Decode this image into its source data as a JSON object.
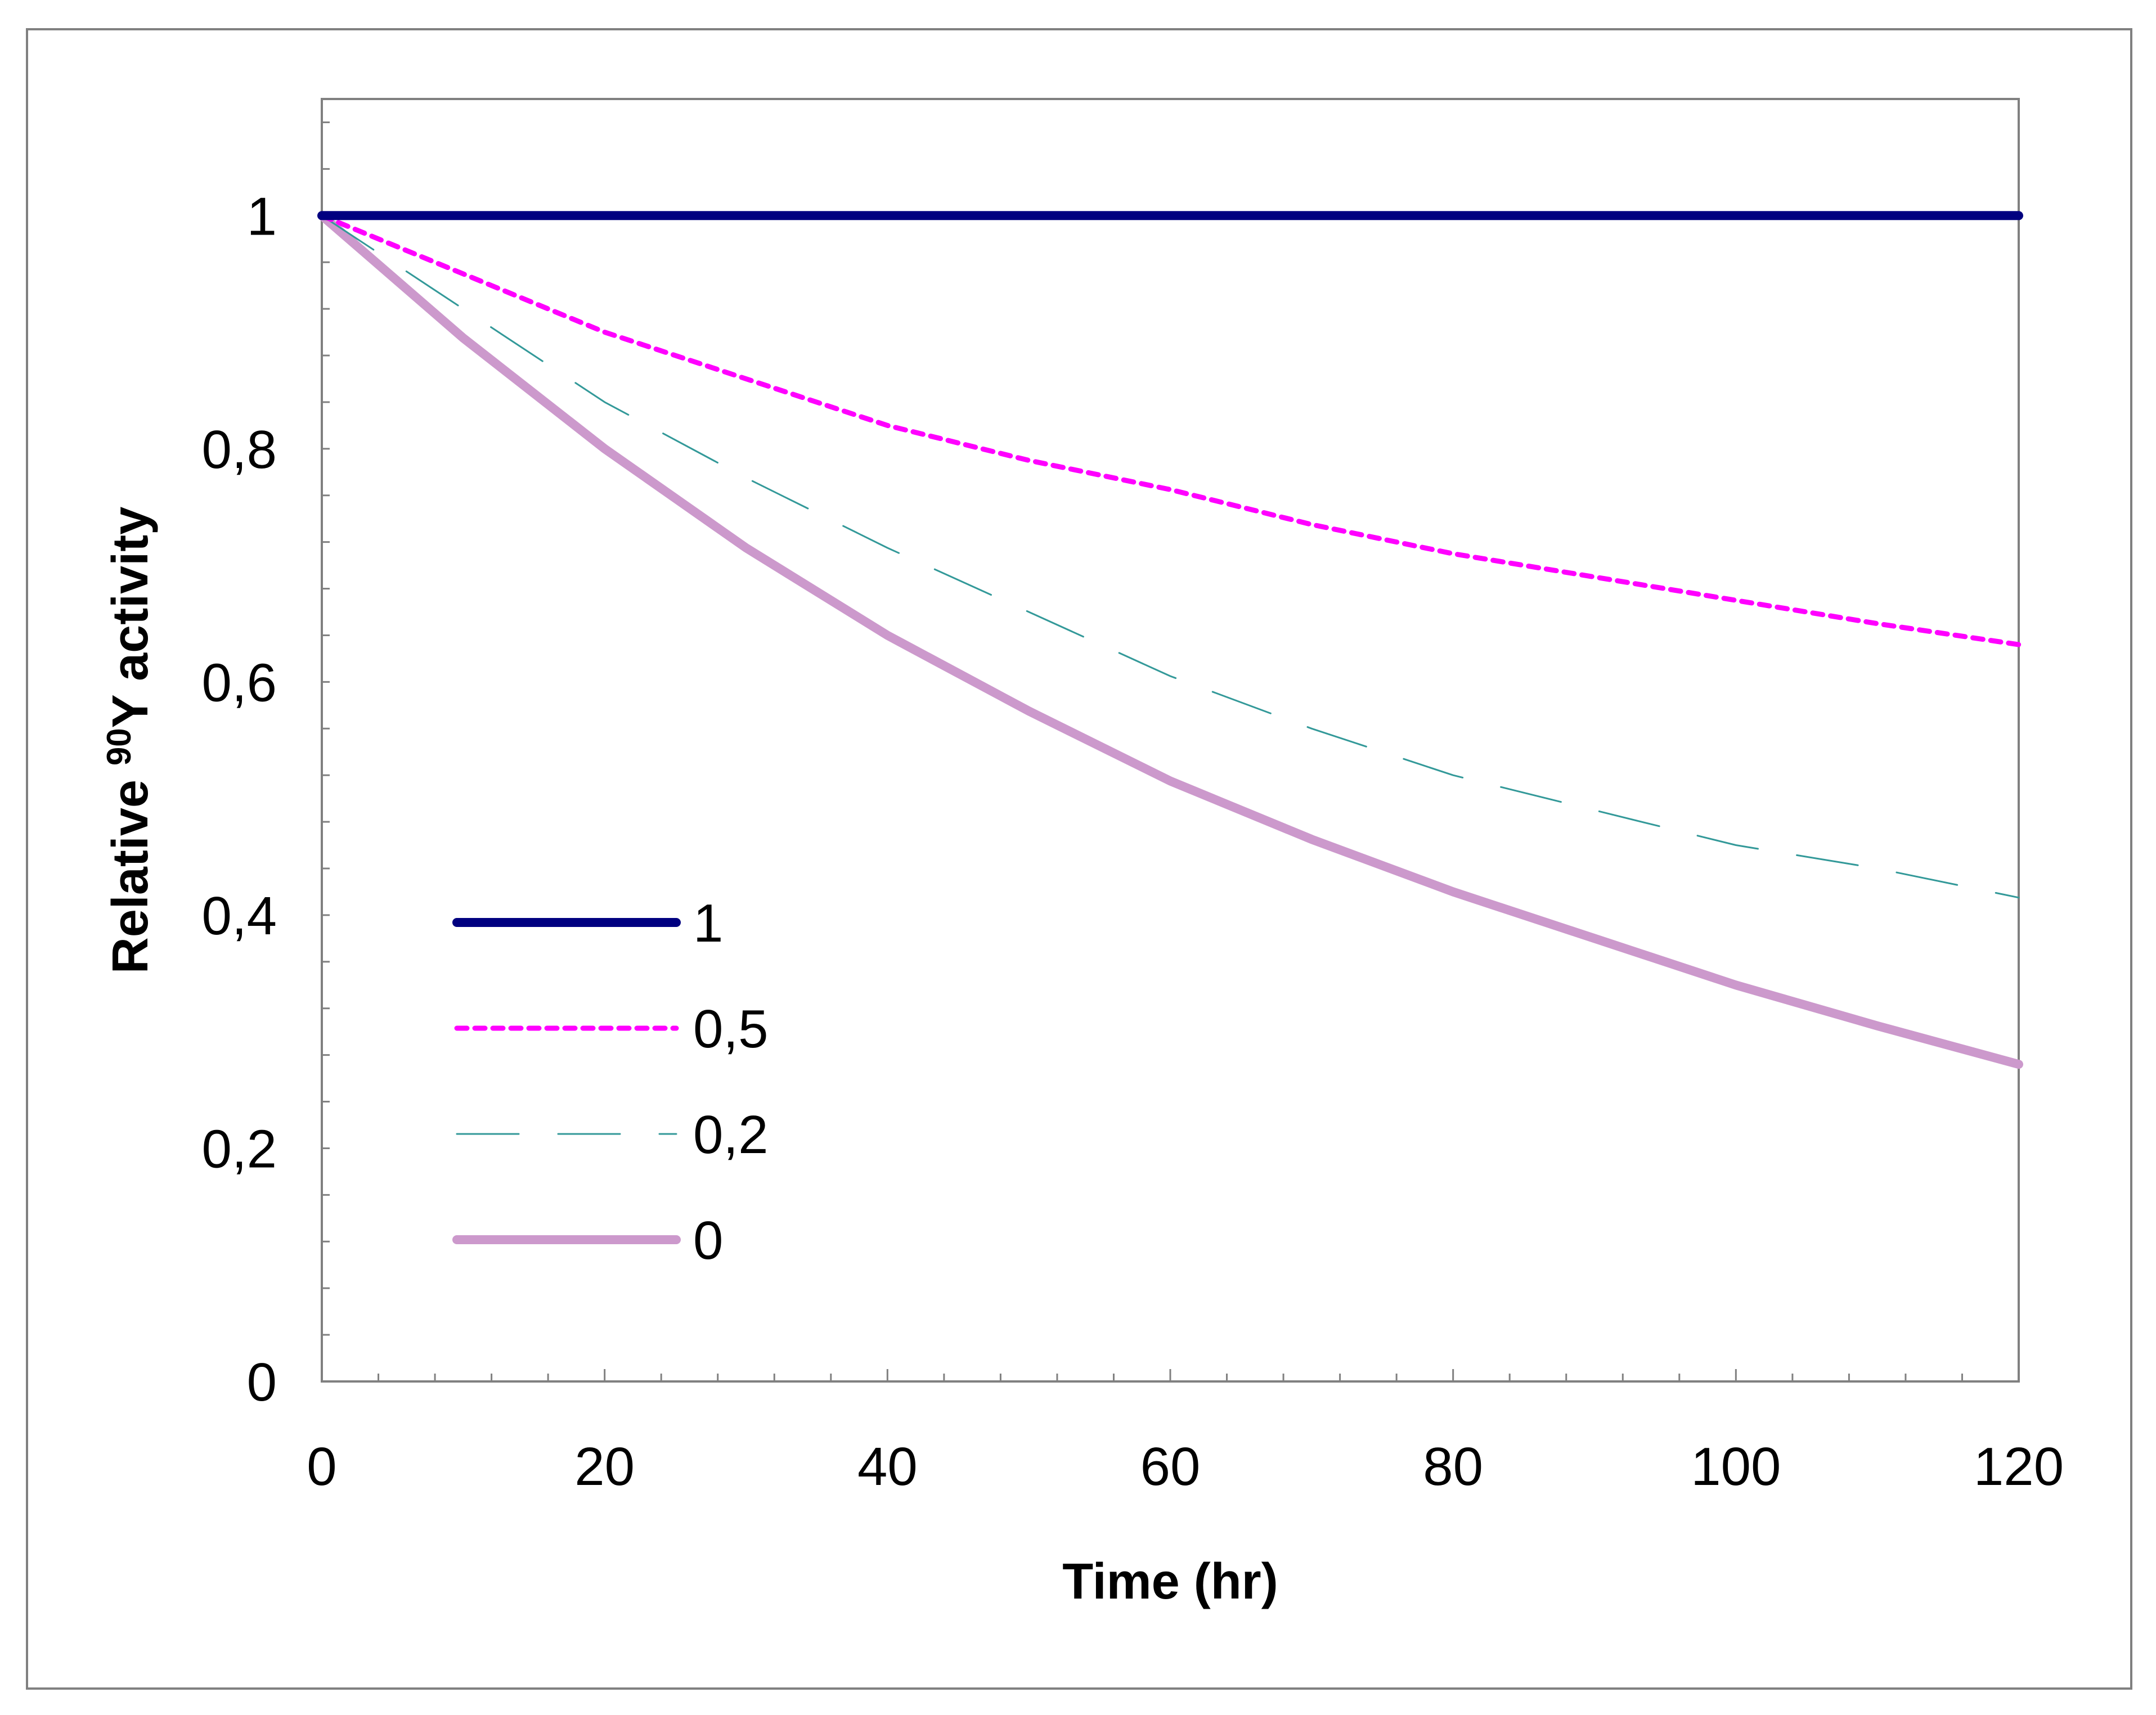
{
  "chart_data": {
    "type": "line",
    "title": "",
    "xlabel": "Time (hr)",
    "ylabel_prefix": "Relative ",
    "ylabel_superscript": "90",
    "ylabel_suffix": "Y activity",
    "xlim": [
      0,
      120
    ],
    "ylim": [
      0,
      1.1
    ],
    "x_ticks": [
      0,
      20,
      40,
      60,
      80,
      100,
      120
    ],
    "x_tick_labels": [
      "0",
      "20",
      "40",
      "60",
      "80",
      "100",
      "120"
    ],
    "x_minor_step": 4,
    "y_ticks": [
      0,
      0.2,
      0.4,
      0.6,
      0.8,
      1.0
    ],
    "y_tick_labels": [
      "0",
      "0,2",
      "0,4",
      "0,6",
      "0,8",
      "1"
    ],
    "y_minor_step": 0.04,
    "grid": false,
    "legend_position": "lower-left",
    "series": [
      {
        "name": "1",
        "style": "solid-thick",
        "color": "#000080",
        "x": [
          0,
          120
        ],
        "y": [
          1.0,
          1.0
        ]
      },
      {
        "name": "0,5",
        "style": "dotted",
        "color": "#FF00FF",
        "x": [
          0,
          10,
          20,
          30,
          40,
          50,
          60,
          70,
          80,
          90,
          100,
          110,
          120
        ],
        "y": [
          1.0,
          0.95,
          0.9,
          0.86,
          0.82,
          0.79,
          0.765,
          0.735,
          0.71,
          0.69,
          0.67,
          0.65,
          0.632
        ]
      },
      {
        "name": "0,2",
        "style": "dashed",
        "color": "#339999",
        "x": [
          0,
          10,
          20,
          30,
          40,
          50,
          60,
          70,
          80,
          90,
          100,
          110,
          120
        ],
        "y": [
          1.0,
          0.92,
          0.84,
          0.775,
          0.715,
          0.66,
          0.605,
          0.56,
          0.52,
          0.49,
          0.46,
          0.44,
          0.415
        ]
      },
      {
        "name": "0",
        "style": "solid-thick",
        "color": "#CC99CC",
        "x": [
          0,
          10,
          20,
          30,
          40,
          50,
          60,
          70,
          80,
          90,
          100,
          110,
          120
        ],
        "y": [
          1.0,
          0.895,
          0.8,
          0.715,
          0.64,
          0.575,
          0.515,
          0.465,
          0.42,
          0.38,
          0.34,
          0.305,
          0.272
        ]
      }
    ]
  }
}
